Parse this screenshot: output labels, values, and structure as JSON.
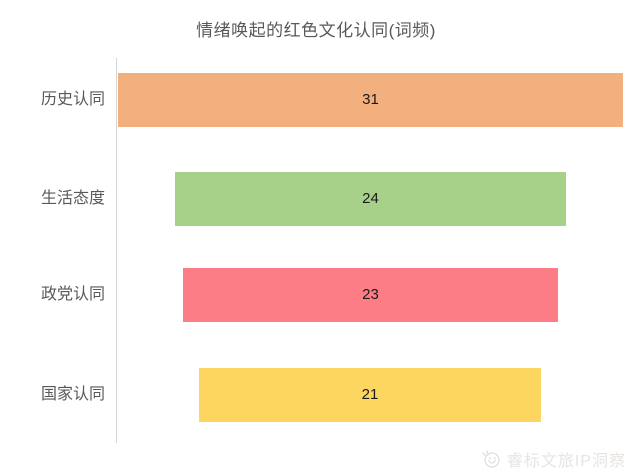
{
  "title": "情绪唤起的红色文化认同(词频)",
  "chart_data": {
    "type": "bar",
    "orientation": "horizontal-centered",
    "title": "情绪唤起的红色文化认同(词频)",
    "xlabel": "",
    "ylabel": "",
    "categories": [
      "历史认同",
      "生活态度",
      "政党认同",
      "国家认同"
    ],
    "values": [
      31,
      24,
      23,
      21
    ],
    "bar_colors": [
      "#F2B07E",
      "#A7D189",
      "#FC7D86",
      "#FDD65F"
    ],
    "value_labels": [
      "31",
      "24",
      "23",
      "21"
    ],
    "xlim": [
      0,
      31
    ],
    "grid": false,
    "legend": false
  },
  "colors": {
    "background": "#FFFFFF",
    "title_text": "#595959",
    "category_text": "#595959",
    "value_text": "#1A1A1A",
    "axis_line": "#D6D6D6",
    "watermark_text": "#E7E4E1"
  },
  "watermark": {
    "text": "睿标文旅IP洞察"
  }
}
